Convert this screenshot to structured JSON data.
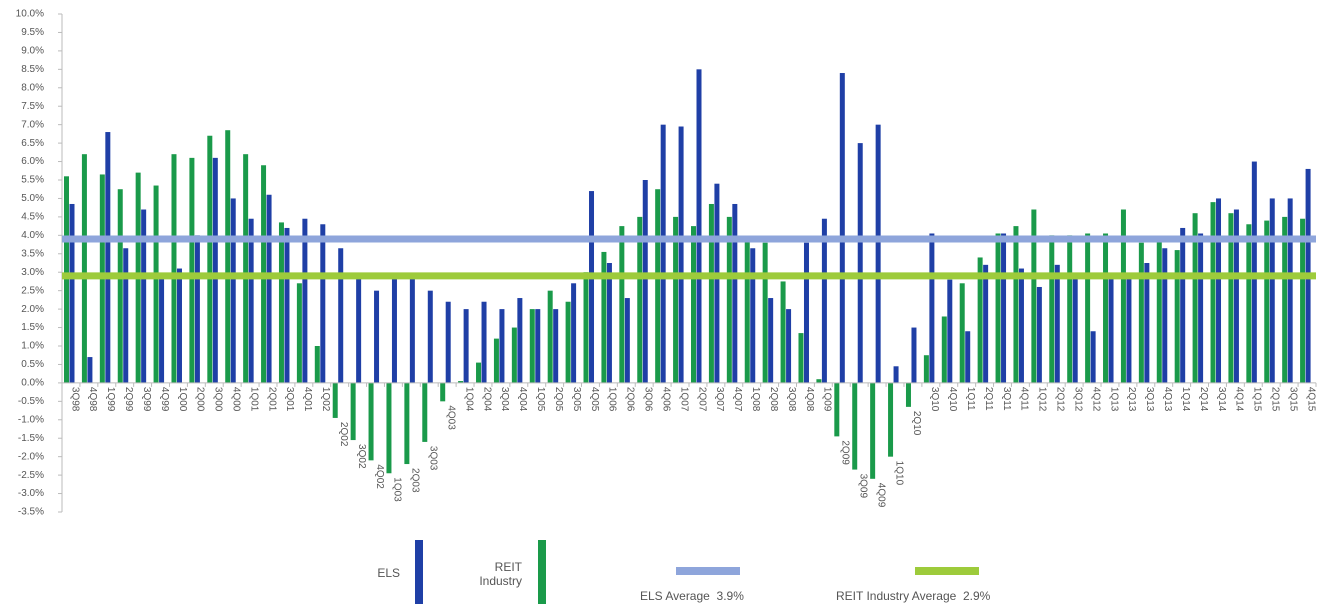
{
  "chart_data": {
    "type": "bar",
    "categories": [
      "3Q98",
      "4Q98",
      "1Q99",
      "2Q99",
      "3Q99",
      "4Q99",
      "1Q00",
      "2Q00",
      "3Q00",
      "4Q00",
      "1Q01",
      "2Q01",
      "3Q01",
      "4Q01",
      "1Q02",
      "2Q02",
      "3Q02",
      "4Q02",
      "1Q03",
      "2Q03",
      "3Q03",
      "4Q03",
      "1Q04",
      "2Q04",
      "3Q04",
      "4Q04",
      "1Q05",
      "2Q05",
      "3Q05",
      "4Q05",
      "1Q06",
      "2Q06",
      "3Q06",
      "4Q06",
      "1Q07",
      "2Q07",
      "3Q07",
      "4Q07",
      "1Q08",
      "2Q08",
      "3Q08",
      "4Q08",
      "1Q09",
      "2Q09",
      "3Q09",
      "4Q09",
      "1Q10",
      "2Q10",
      "3Q10",
      "4Q10",
      "1Q11",
      "2Q11",
      "3Q11",
      "4Q11",
      "1Q12",
      "2Q12",
      "3Q12",
      "4Q12",
      "1Q13",
      "2Q13",
      "3Q13",
      "4Q13",
      "1Q14",
      "2Q14",
      "3Q14",
      "4Q14",
      "1Q15",
      "2Q15",
      "3Q15",
      "4Q15"
    ],
    "series": [
      {
        "name": "ELS",
        "color": "#1f3fa6",
        "values": [
          4.85,
          0.7,
          6.8,
          3.65,
          4.7,
          2.9,
          3.1,
          4.0,
          6.1,
          5.0,
          4.45,
          5.1,
          4.2,
          4.45,
          4.3,
          3.65,
          2.9,
          2.5,
          2.9,
          2.85,
          2.5,
          2.2,
          2.0,
          2.2,
          2.0,
          2.3,
          2.0,
          2.0,
          2.7,
          5.2,
          3.25,
          2.3,
          5.5,
          7.0,
          6.95,
          8.5,
          5.4,
          4.85,
          3.65,
          2.3,
          2.0,
          3.8,
          4.45,
          8.4,
          6.5,
          7.0,
          0.45,
          1.5,
          4.05,
          2.8,
          1.4,
          3.2,
          4.05,
          3.1,
          2.6,
          3.2,
          2.85,
          1.4,
          2.85,
          2.85,
          3.25,
          3.65,
          4.2,
          4.05,
          5.0,
          4.7,
          6.0,
          5.0,
          5.0,
          5.8
        ]
      },
      {
        "name": "REIT Industry",
        "color": "#1a9a4a",
        "values": [
          5.6,
          6.2,
          5.65,
          5.25,
          5.7,
          5.35,
          6.2,
          6.1,
          6.7,
          6.85,
          6.2,
          5.9,
          4.35,
          2.7,
          1.0,
          -0.95,
          -1.55,
          -2.1,
          -2.45,
          -2.2,
          -1.6,
          -0.5,
          0.05,
          0.55,
          1.2,
          1.5,
          2.0,
          2.5,
          2.2,
          3.0,
          3.55,
          4.25,
          4.5,
          5.25,
          4.5,
          4.25,
          4.85,
          4.5,
          3.9,
          3.8,
          2.75,
          1.35,
          0.1,
          -1.45,
          -2.35,
          -2.6,
          -2.0,
          -0.65,
          0.75,
          1.8,
          2.7,
          3.4,
          4.05,
          4.25,
          4.7,
          4.0,
          4.0,
          4.05,
          4.05,
          4.7,
          3.8,
          3.95,
          3.6,
          4.6,
          4.9,
          4.6,
          4.3,
          4.4,
          4.5,
          4.45
        ]
      }
    ],
    "averages": [
      {
        "name": "ELS Average",
        "value": 3.9,
        "value_label": "3.9%",
        "color": "#8ea5db"
      },
      {
        "name": "REIT Industry Average",
        "value": 2.9,
        "value_label": "2.9%",
        "color": "#9dcb3b"
      }
    ],
    "ylim": [
      -3.5,
      10
    ],
    "yticks": [
      {
        "value": 10,
        "label": "10.0%"
      },
      {
        "value": 9.5,
        "label": "9.5%"
      },
      {
        "value": 9,
        "label": "9.0%"
      },
      {
        "value": 8.5,
        "label": "8.5%"
      },
      {
        "value": 8,
        "label": "8.0%"
      },
      {
        "value": 7.5,
        "label": "7.5%"
      },
      {
        "value": 7,
        "label": "7.0%"
      },
      {
        "value": 6.5,
        "label": "6.5%"
      },
      {
        "value": 6,
        "label": "6.0%"
      },
      {
        "value": 5.5,
        "label": "5.5%"
      },
      {
        "value": 5,
        "label": "5.0%"
      },
      {
        "value": 4.5,
        "label": "4.5%"
      },
      {
        "value": 4,
        "label": "4.0%"
      },
      {
        "value": 3.5,
        "label": "3.5%"
      },
      {
        "value": 3,
        "label": "3.0%"
      },
      {
        "value": 2.5,
        "label": "2.5%"
      },
      {
        "value": 2,
        "label": "2.0%"
      },
      {
        "value": 1.5,
        "label": "1.5%"
      },
      {
        "value": 1,
        "label": "1.0%"
      },
      {
        "value": 0.5,
        "label": "0.5%"
      },
      {
        "value": 0,
        "label": "0.0%"
      },
      {
        "value": -0.5,
        "label": "-0.5%"
      },
      {
        "value": -1,
        "label": "-1.0%"
      },
      {
        "value": -1.5,
        "label": "-1.5%"
      },
      {
        "value": -2,
        "label": "-2.0%"
      },
      {
        "value": -2.5,
        "label": "-2.5%"
      },
      {
        "value": -3,
        "label": "-3.0%"
      },
      {
        "value": -3.5,
        "label": "-3.5%"
      }
    ]
  }
}
